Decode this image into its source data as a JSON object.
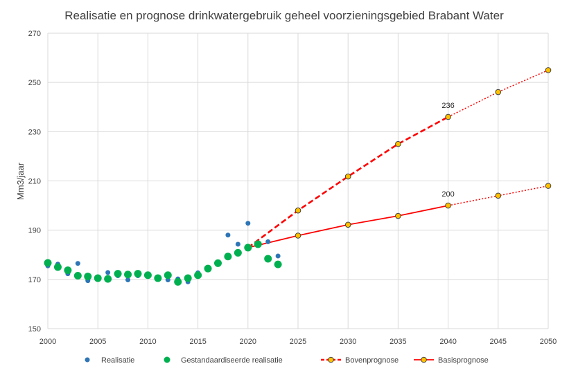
{
  "chart_data": {
    "type": "line",
    "title": "Realisatie en prognose drinkwatergebruik geheel voorzieningsgebied Brabant Water",
    "xlabel": "",
    "ylabel": "Mm3/jaar",
    "xlim": [
      2000,
      2050
    ],
    "ylim": [
      150,
      270
    ],
    "x_ticks": [
      2000,
      2005,
      2010,
      2015,
      2020,
      2025,
      2030,
      2035,
      2040,
      2045,
      2050
    ],
    "y_ticks": [
      150,
      170,
      190,
      210,
      230,
      250,
      270
    ],
    "grid": true,
    "legend_position": "bottom",
    "series": [
      {
        "name": "Realisatie",
        "style": "scatter",
        "color": "#2E75B6",
        "x": [
          2000,
          2001,
          2002,
          2003,
          2004,
          2005,
          2006,
          2007,
          2008,
          2009,
          2010,
          2011,
          2012,
          2013,
          2014,
          2015,
          2016,
          2017,
          2018,
          2019,
          2020,
          2021,
          2022,
          2023
        ],
        "y": [
          175.5,
          176.2,
          172.3,
          176.5,
          169.5,
          170.5,
          172.8,
          171.5,
          169.8,
          171.5,
          171.8,
          170.5,
          169.8,
          170.2,
          169.0,
          172.7,
          174.0,
          176.7,
          188.0,
          184.3,
          192.8,
          184.5,
          185.3,
          179.5
        ]
      },
      {
        "name": "Gestandaardiseerde realisatie",
        "style": "scatter",
        "color": "#00B050",
        "x": [
          2000,
          2001,
          2002,
          2003,
          2004,
          2005,
          2006,
          2007,
          2008,
          2009,
          2010,
          2011,
          2012,
          2013,
          2014,
          2015,
          2016,
          2017,
          2018,
          2019,
          2020,
          2021,
          2022,
          2023
        ],
        "y": [
          176.7,
          175.0,
          173.7,
          171.5,
          171.2,
          170.5,
          170.2,
          172.3,
          172.0,
          172.3,
          171.7,
          170.5,
          171.7,
          169.0,
          170.5,
          171.7,
          174.4,
          176.6,
          179.3,
          180.8,
          182.9,
          184.3,
          178.4,
          176.1
        ]
      },
      {
        "name": "Bovenprognose",
        "style": "line-dashed",
        "color": "#FF0000",
        "marker_color": "#FFC000",
        "x": [
          2020,
          2025,
          2030,
          2035,
          2040,
          2045,
          2050
        ],
        "y": [
          182.9,
          198.0,
          211.8,
          225.0,
          236.0,
          246.1,
          255.0
        ]
      },
      {
        "name": "Basisprognose",
        "style": "line-solid",
        "color": "#FF0000",
        "marker_color": "#FFC000",
        "x": [
          2020,
          2025,
          2030,
          2035,
          2040,
          2045,
          2050
        ],
        "y": [
          182.9,
          187.8,
          192.2,
          195.8,
          200.0,
          204.0,
          208.0
        ]
      }
    ],
    "annotations": [
      {
        "text": "236",
        "x": 2040,
        "y": 236
      },
      {
        "text": "200",
        "x": 2040,
        "y": 200
      }
    ]
  }
}
